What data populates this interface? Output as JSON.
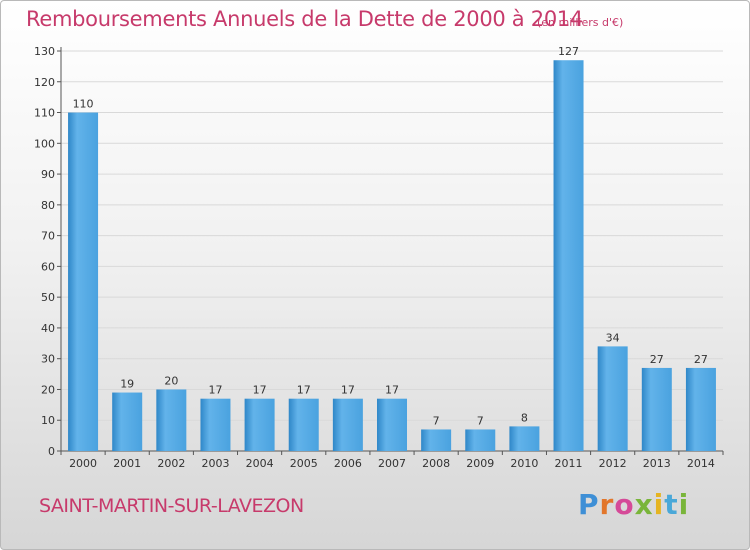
{
  "title": "Remboursements Annuels de la Dette de 2000 à 2014",
  "unit": "(en milliers d'€)",
  "commune": "SAINT-MARTIN-SUR-LAVEZON",
  "logo": {
    "p": "P",
    "r": "r",
    "o": "o",
    "x": "x",
    "i1": "i",
    "t": "t",
    "i2": "i"
  },
  "colors": {
    "title": "#c73a6b",
    "bar_light": "#62b3ea",
    "bar_dark": "#2f87c8",
    "grid": "#d9d9d9"
  },
  "chart_data": {
    "type": "bar",
    "categories": [
      "2000",
      "2001",
      "2002",
      "2003",
      "2004",
      "2005",
      "2006",
      "2007",
      "2008",
      "2009",
      "2010",
      "2011",
      "2012",
      "2013",
      "2014"
    ],
    "values": [
      110,
      19,
      20,
      17,
      17,
      17,
      17,
      17,
      7,
      7,
      8,
      127,
      34,
      27,
      27
    ],
    "ylim": [
      0,
      130
    ],
    "yticks": [
      0,
      10,
      20,
      30,
      40,
      50,
      60,
      70,
      80,
      90,
      100,
      110,
      120,
      130
    ],
    "grid": true,
    "legend": "none"
  }
}
